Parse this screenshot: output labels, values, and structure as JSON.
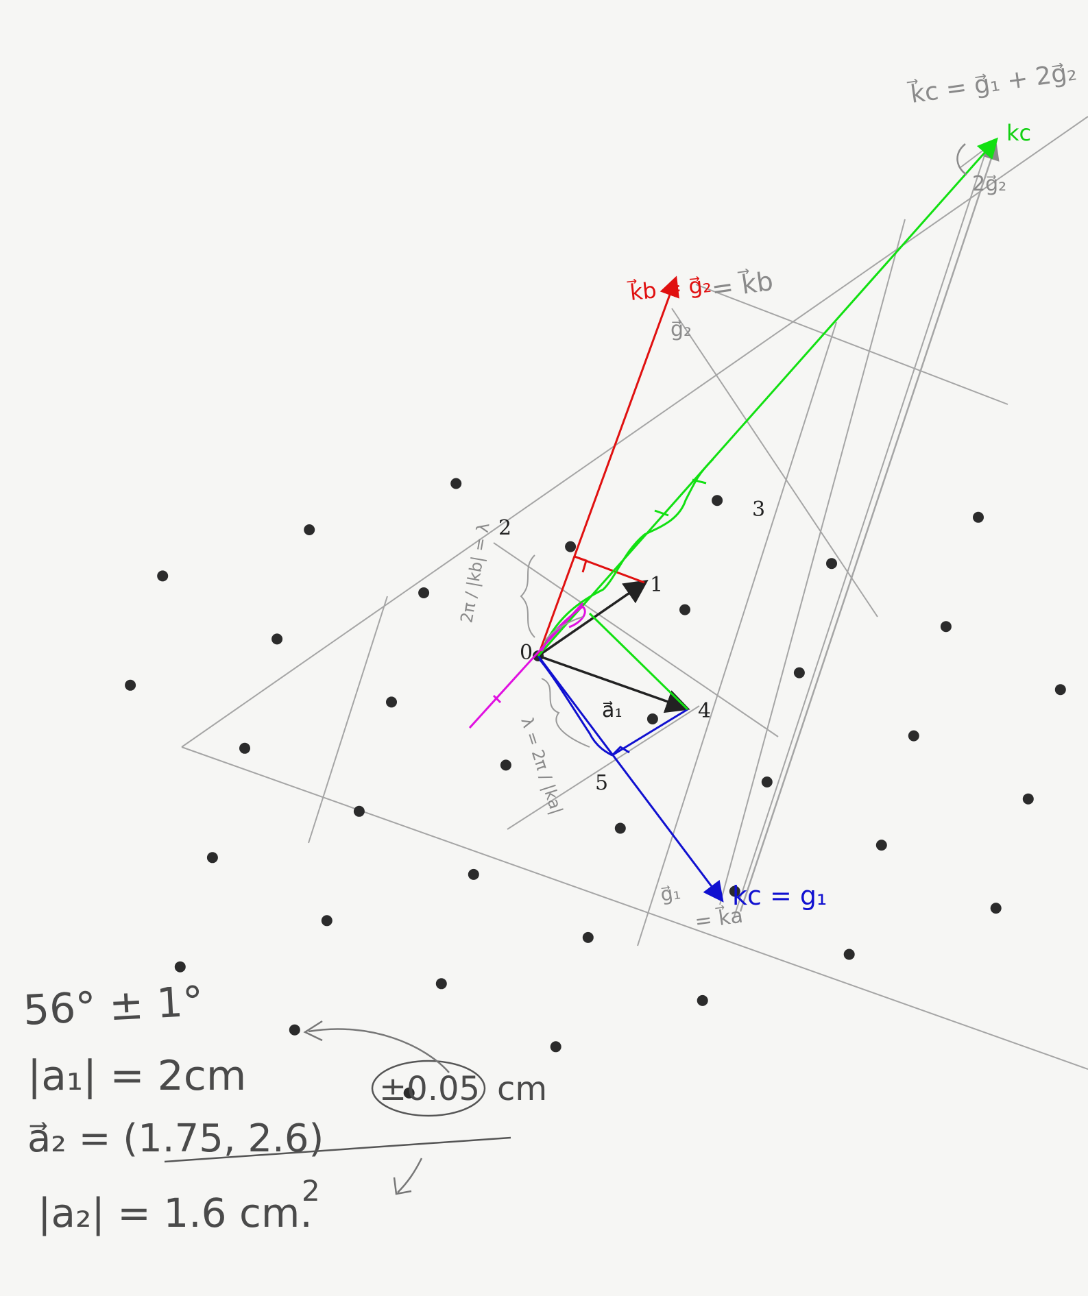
{
  "colors": {
    "paper": "#f6f6f4",
    "dot": "#2b2b2b",
    "pencil": "#9a9a9a",
    "black_vec": "#222222",
    "red": "#e01010",
    "blue": "#1010d0",
    "green": "#12e012",
    "magenta": "#e010e0"
  },
  "lattice": {
    "origin": [
      0,
      0
    ],
    "a1": [
      2.0,
      -0.63
    ],
    "a2": [
      1.56,
      0.86
    ],
    "dots": [
      [
        -4,
        4
      ],
      [
        -3,
        4
      ],
      [
        -2,
        4
      ],
      [
        -1,
        4
      ],
      [
        0,
        4
      ],
      [
        1,
        4
      ],
      [
        2,
        4
      ],
      [
        -4,
        3
      ],
      [
        -3,
        3
      ],
      [
        -2,
        3
      ],
      [
        -1,
        3
      ],
      [
        0,
        3
      ],
      [
        1,
        3
      ],
      [
        2,
        3
      ],
      [
        -4,
        2
      ],
      [
        -3,
        2
      ],
      [
        -2,
        2
      ],
      [
        -1,
        2
      ],
      [
        0,
        2
      ],
      [
        1,
        2
      ],
      [
        2,
        2
      ],
      [
        3,
        2
      ],
      [
        -3,
        1
      ],
      [
        -2,
        1
      ],
      [
        -1,
        1
      ],
      [
        0,
        1
      ],
      [
        1,
        1
      ],
      [
        2,
        1
      ],
      [
        3,
        1
      ],
      [
        -2,
        0
      ],
      [
        -1,
        0
      ],
      [
        0,
        0
      ],
      [
        1,
        0
      ],
      [
        2,
        0
      ],
      [
        3,
        0
      ],
      [
        -2,
        -1
      ],
      [
        -1,
        -1
      ],
      [
        0,
        -1
      ],
      [
        1,
        -1
      ],
      [
        2,
        -1
      ],
      [
        -1,
        -2
      ],
      [
        0,
        -2
      ],
      [
        1,
        -2
      ]
    ]
  },
  "labels": {
    "origin": "0",
    "p1": "1",
    "p2": "2",
    "p3": "3",
    "p4": "4",
    "p5": "5",
    "a1_vec": "a⃗₁"
  },
  "annotations": {
    "kc_top": "k⃗c = g⃗₁ + 2g⃗₂",
    "kc_green": "kc",
    "two_g2": "2g⃗₂",
    "kb_red": "k⃗b = g⃗₂",
    "kb_pencil": "= k⃗b",
    "g2_pencil": "g⃗₂",
    "blue_kc": "kc = g₁",
    "blue_pencil_1": "g⃗₁",
    "blue_pencil_2": "= k⃗a",
    "lambda_a": "λ = 2π / |ka|",
    "lambda_b": "2π / |kb| = λ"
  },
  "notes": {
    "angle": "56° ± 1°",
    "a1_len": "|a₁| = 2cm",
    "a2_vec": "a⃗₂ = (1.75, 2.6)",
    "a2_err": "±0.05",
    "a2_unit": "cm",
    "divisor": "2",
    "a2_len": "|a₂| = 1.6  cm."
  }
}
